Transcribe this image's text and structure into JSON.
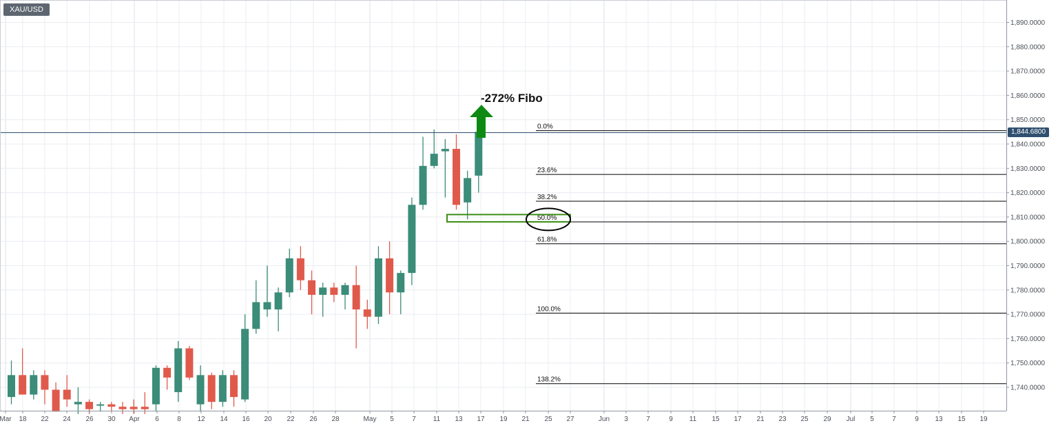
{
  "symbol": "XAU/USD",
  "current_price_label": "1,844.6800",
  "annotation": "-272% Fibo",
  "colors": {
    "up": "#3b8c78",
    "down": "#e05a4b",
    "grid": "#e9ecf1",
    "fib_line": "#000000",
    "arrow": "#0e8a12",
    "zone_box": "#3c8d14",
    "ellipse": "#000000",
    "price_line": "#2f4f6f",
    "badge": "#5d6670"
  },
  "chart_data": {
    "type": "candlestick",
    "title": "",
    "xlabel": "",
    "ylabel": "",
    "ylim": [
      1732,
      1896
    ],
    "grid": true,
    "x_ticks": [
      "Mar",
      "18",
      "22",
      "24",
      "26",
      "30",
      "Apr",
      "6",
      "8",
      "12",
      "14",
      "16",
      "20",
      "22",
      "26",
      "28",
      "May",
      "5",
      "7",
      "11",
      "13",
      "17",
      "19",
      "21",
      "25",
      "27",
      "Jun",
      "3",
      "7",
      "9",
      "11",
      "15",
      "17",
      "21",
      "23",
      "25",
      "29",
      "Jul",
      "5",
      "7",
      "9",
      "13",
      "15",
      "19"
    ],
    "y_ticks": [
      "1,740.0000",
      "1,750.0000",
      "1,760.0000",
      "1,770.0000",
      "1,780.0000",
      "1,790.0000",
      "1,800.0000",
      "1,810.0000",
      "1,820.0000",
      "1,830.0000",
      "1,840.0000",
      "1,850.0000",
      "1,860.0000",
      "1,870.0000",
      "1,880.0000",
      "1,890.0000"
    ],
    "candles": [
      {
        "o": 1736,
        "h": 1751,
        "l": 1733,
        "c": 1745
      },
      {
        "o": 1745,
        "h": 1756,
        "l": 1738,
        "c": 1737
      },
      {
        "o": 1737,
        "h": 1747,
        "l": 1735,
        "c": 1745
      },
      {
        "o": 1745,
        "h": 1747,
        "l": 1733,
        "c": 1739
      },
      {
        "o": 1739,
        "h": 1742,
        "l": 1730,
        "c": 1730
      },
      {
        "o": 1739,
        "h": 1745,
        "l": 1732,
        "c": 1735
      },
      {
        "o": 1733,
        "h": 1740,
        "l": 1729,
        "c": 1734
      },
      {
        "o": 1734,
        "h": 1735,
        "l": 1729,
        "c": 1731
      },
      {
        "o": 1733,
        "h": 1734,
        "l": 1730,
        "c": 1733
      },
      {
        "o": 1733,
        "h": 1734,
        "l": 1730,
        "c": 1732
      },
      {
        "o": 1732,
        "h": 1734,
        "l": 1729,
        "c": 1731
      },
      {
        "o": 1732,
        "h": 1735,
        "l": 1729,
        "c": 1731
      },
      {
        "o": 1732,
        "h": 1738,
        "l": 1729,
        "c": 1731
      },
      {
        "o": 1733,
        "h": 1749,
        "l": 1730,
        "c": 1748
      },
      {
        "o": 1748,
        "h": 1749,
        "l": 1739,
        "c": 1744
      },
      {
        "o": 1738,
        "h": 1759,
        "l": 1734,
        "c": 1756
      },
      {
        "o": 1756,
        "h": 1757,
        "l": 1743,
        "c": 1744
      },
      {
        "o": 1733,
        "h": 1749,
        "l": 1730,
        "c": 1745
      },
      {
        "o": 1745,
        "h": 1746,
        "l": 1731,
        "c": 1734
      },
      {
        "o": 1734,
        "h": 1747,
        "l": 1732,
        "c": 1745
      },
      {
        "o": 1745,
        "h": 1747,
        "l": 1732,
        "c": 1736
      },
      {
        "o": 1735,
        "h": 1770,
        "l": 1734,
        "c": 1764
      },
      {
        "o": 1764,
        "h": 1784,
        "l": 1762,
        "c": 1775
      },
      {
        "o": 1772,
        "h": 1790,
        "l": 1769,
        "c": 1775
      },
      {
        "o": 1772,
        "h": 1781,
        "l": 1763,
        "c": 1779
      },
      {
        "o": 1779,
        "h": 1797,
        "l": 1777,
        "c": 1793
      },
      {
        "o": 1793,
        "h": 1798,
        "l": 1780,
        "c": 1784
      },
      {
        "o": 1784,
        "h": 1788,
        "l": 1770,
        "c": 1778
      },
      {
        "o": 1778,
        "h": 1783,
        "l": 1769,
        "c": 1781
      },
      {
        "o": 1781,
        "h": 1783,
        "l": 1775,
        "c": 1778
      },
      {
        "o": 1778,
        "h": 1783,
        "l": 1772,
        "c": 1782
      },
      {
        "o": 1782,
        "h": 1790,
        "l": 1756,
        "c": 1772
      },
      {
        "o": 1772,
        "h": 1776,
        "l": 1764,
        "c": 1769
      },
      {
        "o": 1769,
        "h": 1798,
        "l": 1766,
        "c": 1793
      },
      {
        "o": 1793,
        "h": 1800,
        "l": 1770,
        "c": 1779
      },
      {
        "o": 1779,
        "h": 1788,
        "l": 1770,
        "c": 1787
      },
      {
        "o": 1787,
        "h": 1818,
        "l": 1782,
        "c": 1815
      },
      {
        "o": 1815,
        "h": 1843,
        "l": 1813,
        "c": 1831
      },
      {
        "o": 1831,
        "h": 1846,
        "l": 1830,
        "c": 1836
      },
      {
        "o": 1837,
        "h": 1842,
        "l": 1818,
        "c": 1838
      },
      {
        "o": 1838,
        "h": 1844,
        "l": 1813,
        "c": 1815
      },
      {
        "o": 1816,
        "h": 1829,
        "l": 1809,
        "c": 1826
      },
      {
        "o": 1827,
        "h": 1846,
        "l": 1820,
        "c": 1845
      }
    ],
    "fib_levels": [
      {
        "label": "0.0%",
        "value": 1845.5
      },
      {
        "label": "23.6%",
        "value": 1827.5
      },
      {
        "label": "38.2%",
        "value": 1816.5
      },
      {
        "label": "50.0%",
        "value": 1808.0
      },
      {
        "label": "61.8%",
        "value": 1799.0
      },
      {
        "label": "100.0%",
        "value": 1770.5
      },
      {
        "label": "138.2%",
        "value": 1741.5
      }
    ],
    "current_price": 1844.68,
    "zone": {
      "from": 1808,
      "to": 1811
    }
  }
}
